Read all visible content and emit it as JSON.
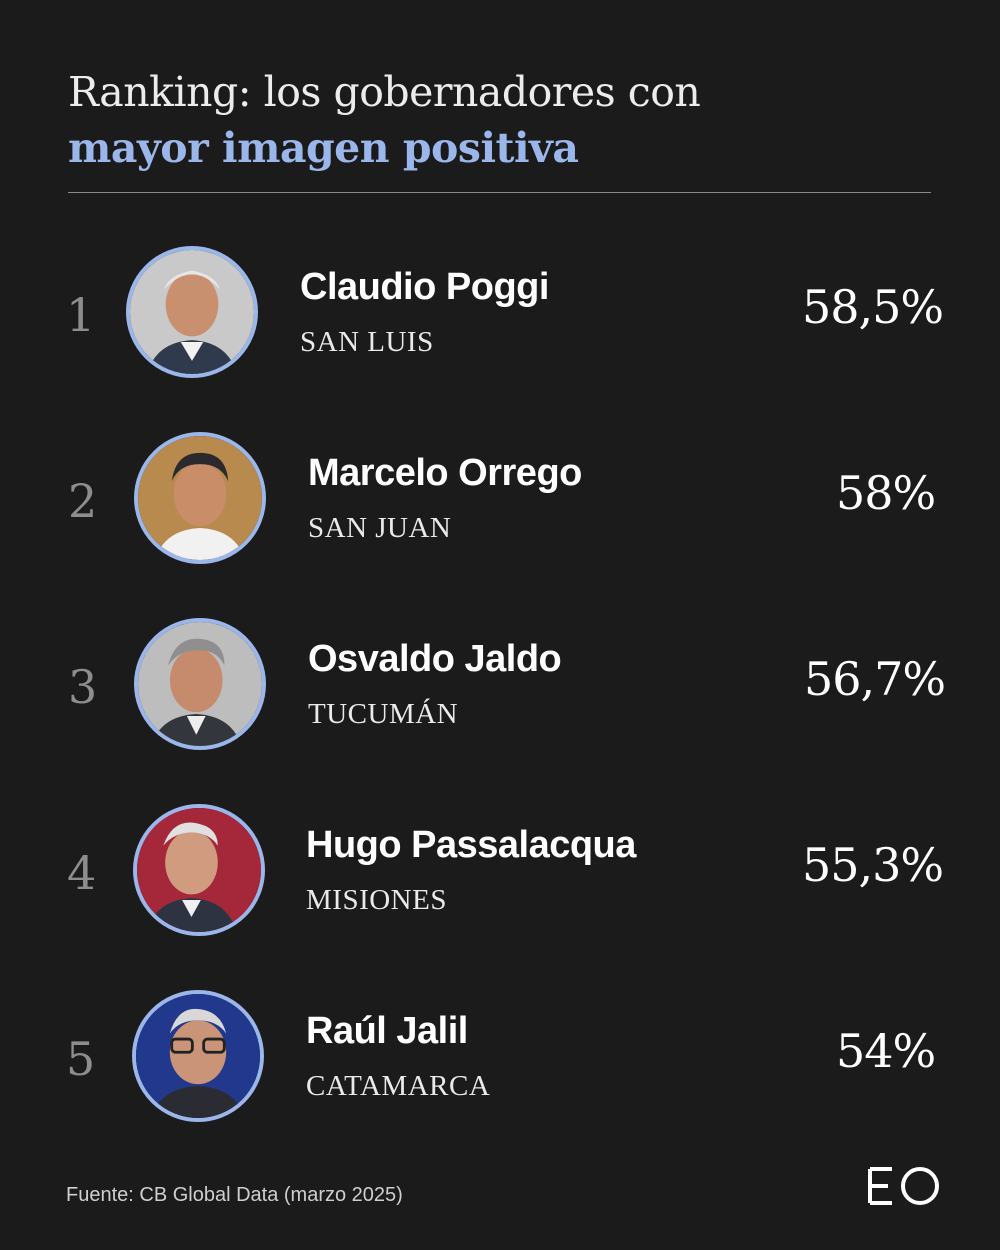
{
  "title": {
    "line1": "Ranking: los gobernadores con",
    "line2": "mayor imagen positiva"
  },
  "rows": [
    {
      "rank": "1",
      "name": "Claudio Poggi",
      "province": "SAN LUIS",
      "value": "58,5%",
      "percent": 58.5
    },
    {
      "rank": "2",
      "name": "Marcelo Orrego",
      "province": "SAN JUAN",
      "value": "58%",
      "percent": 58
    },
    {
      "rank": "3",
      "name": "Osvaldo Jaldo",
      "province": "TUCUMÁN",
      "value": "56,7%",
      "percent": 56.7
    },
    {
      "rank": "4",
      "name": "Hugo Passalacqua",
      "province": "MISIONES",
      "value": "55,3%",
      "percent": 55.3
    },
    {
      "rank": "5",
      "name": "Raúl Jalil",
      "province": "CATAMARCA",
      "value": "54%",
      "percent": 54
    }
  ],
  "footer": {
    "source": "Fuente: CB Global Data (marzo 2025)"
  },
  "logo": {
    "text": "EO"
  },
  "colors": {
    "background": "#1b1b1b",
    "accent": "#9bb6ea",
    "text": "#ffffff",
    "rank": "#8d8d8d"
  }
}
